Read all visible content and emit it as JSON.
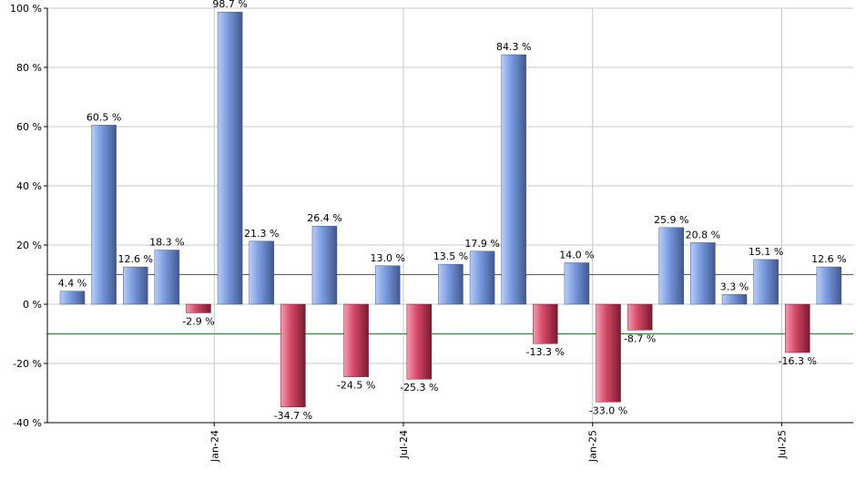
{
  "chart_data": {
    "type": "bar",
    "title": "",
    "xlabel": "",
    "ylabel": "",
    "ylim": [
      -40,
      100
    ],
    "yticks": [
      -40,
      -20,
      0,
      20,
      40,
      60,
      80,
      100
    ],
    "ytick_suffix": " %",
    "grid": true,
    "reference_lines": [
      10,
      -10
    ],
    "x_tick_labels": [
      {
        "label": "Jan-24",
        "between": [
          4,
          5
        ]
      },
      {
        "label": "Jul-24",
        "between": [
          10,
          11
        ]
      },
      {
        "label": "Jan-25",
        "between": [
          16,
          17
        ]
      },
      {
        "label": "Jul-25",
        "between": [
          22,
          23
        ]
      }
    ],
    "values": [
      4.4,
      60.5,
      12.6,
      18.3,
      -2.9,
      98.7,
      21.3,
      -34.7,
      26.4,
      -24.5,
      13.0,
      -25.3,
      13.5,
      17.9,
      84.3,
      -13.3,
      14.0,
      -33.0,
      -8.7,
      25.9,
      20.8,
      3.3,
      15.1,
      -16.3,
      12.6
    ],
    "labels": [
      "4.4 %",
      "60.5 %",
      "12.6 %",
      "18.3 %",
      "-2.9 %",
      "98.7 %",
      "21.3 %",
      "-34.7 %",
      "26.4 %",
      "-24.5 %",
      "13.0 %",
      "-25.3 %",
      "13.5 %",
      "17.9 %",
      "84.3 %",
      "-13.3 %",
      "14.0 %",
      "-33.0 %",
      "-8.7 %",
      "25.9 %",
      "20.8 %",
      "3.3 %",
      "15.1 %",
      "-16.3 %",
      "12.6 %"
    ],
    "colors": {
      "positive_light": "#b9cdf5",
      "positive_mid": "#7a9be0",
      "positive_dark": "#40588f",
      "negative_light": "#f0a0b0",
      "negative_mid": "#d64a68",
      "negative_dark": "#7a1a30",
      "grid": "#c8c8c8",
      "reference_line": "#2e7d32",
      "axis": "#000000"
    }
  }
}
